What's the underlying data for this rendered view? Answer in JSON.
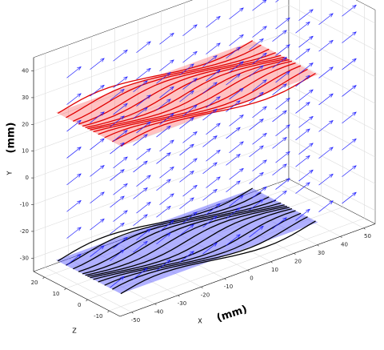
{
  "chart_data": {
    "type": "quiver3",
    "xlabel": "X",
    "xlabel_unit": "(mm)",
    "ylabel": "Y",
    "ylabel_unit": "(mm)",
    "zlabel": "Z",
    "xlim": [
      -55,
      55
    ],
    "ylim": [
      -35,
      45
    ],
    "zlim": [
      -15,
      25
    ],
    "xticks": [
      -50,
      -40,
      -30,
      -20,
      -10,
      0,
      10,
      20,
      30,
      40,
      50
    ],
    "yticks": [
      -30,
      -20,
      -10,
      0,
      10,
      20,
      30,
      40
    ],
    "zticks": [
      -10,
      0,
      10,
      20
    ],
    "grid": true
  }
}
